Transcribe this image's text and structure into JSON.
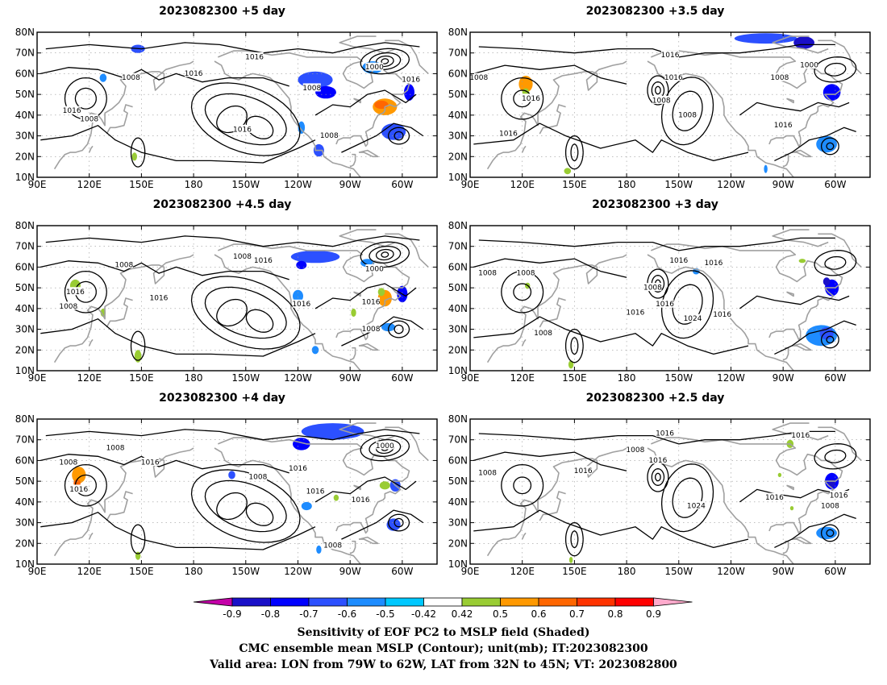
{
  "panels": [
    {
      "id": "p1",
      "title": "2023082300 +5 day",
      "contour_labels": [
        "1008",
        "1016",
        "1016",
        "1008",
        "1016",
        "1016",
        "1008",
        "1008",
        "1000",
        "1016"
      ],
      "shading": [
        {
          "lon": -70,
          "lat": 44,
          "rx": 7,
          "ry": 4,
          "v": 0.6
        },
        {
          "lon": -72,
          "lat": 45,
          "rx": 4,
          "ry": 2,
          "v": 0.7
        },
        {
          "lon": -65,
          "lat": 32,
          "rx": 7,
          "ry": 4,
          "v": -0.6
        },
        {
          "lon": -110,
          "lat": 57,
          "rx": 10,
          "ry": 4,
          "v": -0.6
        },
        {
          "lon": -104,
          "lat": 51,
          "rx": 6,
          "ry": 3,
          "v": -0.7
        },
        {
          "lon": -118,
          "lat": 34,
          "rx": 2,
          "ry": 3,
          "v": -0.5
        },
        {
          "lon": -108,
          "lat": 23,
          "rx": 3,
          "ry": 3,
          "v": -0.6
        },
        {
          "lon": -56,
          "lat": 51,
          "rx": 3,
          "ry": 4,
          "v": -0.7
        },
        {
          "lon": -77,
          "lat": 63,
          "rx": 6,
          "ry": 3,
          "v": -0.5
        },
        {
          "lon": 148,
          "lat": 72,
          "rx": 4,
          "ry": 2,
          "v": -0.6
        },
        {
          "lon": 146,
          "lat": 20,
          "rx": 1.5,
          "ry": 2,
          "v": 0.5
        },
        {
          "lon": 128,
          "lat": 58,
          "rx": 2,
          "ry": 2,
          "v": -0.5
        }
      ]
    },
    {
      "id": "p2",
      "title": "2023082300 +3.5 day",
      "contour_labels": [
        "1016",
        "1016",
        "1000",
        "1008",
        "1008",
        "1016",
        "1008",
        "1016",
        "1016",
        "1008"
      ],
      "shading": [
        {
          "lon": 122,
          "lat": 55,
          "rx": 4,
          "ry": 4,
          "v": 0.6
        },
        {
          "lon": 122,
          "lat": 51,
          "rx": 2,
          "ry": 2,
          "v": 0.5
        },
        {
          "lon": -62,
          "lat": 51,
          "rx": 5,
          "ry": 4,
          "v": -0.7
        },
        {
          "lon": -65,
          "lat": 26,
          "rx": 6,
          "ry": 4,
          "v": -0.5
        },
        {
          "lon": -100,
          "lat": 77,
          "rx": 18,
          "ry": 2.5,
          "v": -0.6
        },
        {
          "lon": -78,
          "lat": 75,
          "rx": 6,
          "ry": 3,
          "v": -0.8
        },
        {
          "lon": 146,
          "lat": 13,
          "rx": 2,
          "ry": 1.5,
          "v": 0.5
        },
        {
          "lon": -100,
          "lat": 14,
          "rx": 1,
          "ry": 2,
          "v": -0.5
        }
      ]
    },
    {
      "id": "p3",
      "title": "2023082300 +4.5 day",
      "contour_labels": [
        "1008",
        "1016",
        "1008",
        "1016",
        "1008",
        "1016",
        "1000",
        "1016",
        "1016",
        "1008"
      ],
      "shading": [
        {
          "lon": 112,
          "lat": 51,
          "rx": 3,
          "ry": 3,
          "v": 0.5
        },
        {
          "lon": 128,
          "lat": 38,
          "rx": 1.5,
          "ry": 2,
          "v": 0.5
        },
        {
          "lon": -70,
          "lat": 45,
          "rx": 4,
          "ry": 4,
          "v": 0.6
        },
        {
          "lon": -72,
          "lat": 48,
          "rx": 2,
          "ry": 2,
          "v": 0.5
        },
        {
          "lon": -60,
          "lat": 47,
          "rx": 3,
          "ry": 4,
          "v": -0.7
        },
        {
          "lon": -110,
          "lat": 65,
          "rx": 14,
          "ry": 3,
          "v": -0.6
        },
        {
          "lon": -118,
          "lat": 61,
          "rx": 3,
          "ry": 2,
          "v": -0.7
        },
        {
          "lon": -80,
          "lat": 62,
          "rx": 4,
          "ry": 2,
          "v": -0.5
        },
        {
          "lon": -68,
          "lat": 31,
          "rx": 4,
          "ry": 2,
          "v": -0.5
        },
        {
          "lon": -120,
          "lat": 46,
          "rx": 3,
          "ry": 3,
          "v": -0.5
        },
        {
          "lon": 148,
          "lat": 17,
          "rx": 2,
          "ry": 3,
          "v": 0.5
        },
        {
          "lon": -110,
          "lat": 20,
          "rx": 2,
          "ry": 2,
          "v": -0.5
        },
        {
          "lon": -88,
          "lat": 38,
          "rx": 1.5,
          "ry": 2,
          "v": 0.5
        }
      ]
    },
    {
      "id": "p4",
      "title": "2023082300 +3 day",
      "contour_labels": [
        "1008",
        "1016",
        "1016",
        "1008",
        "1016",
        "1008",
        "1016",
        "1016",
        "1024",
        "1008"
      ],
      "shading": [
        {
          "lon": -62,
          "lat": 50,
          "rx": 4,
          "ry": 4,
          "v": -0.7
        },
        {
          "lon": -65,
          "lat": 53,
          "rx": 2,
          "ry": 2,
          "v": -0.8
        },
        {
          "lon": -68,
          "lat": 27,
          "rx": 9,
          "ry": 5,
          "v": -0.5
        },
        {
          "lon": -65,
          "lat": 28,
          "rx": 4,
          "ry": 3,
          "v": -0.6
        },
        {
          "lon": -140,
          "lat": 58,
          "rx": 2,
          "ry": 1.5,
          "v": -0.5
        },
        {
          "lon": 123,
          "lat": 51,
          "rx": 1.5,
          "ry": 1.5,
          "v": 0.5
        },
        {
          "lon": -79,
          "lat": 63,
          "rx": 2,
          "ry": 1,
          "v": 0.5
        },
        {
          "lon": 148,
          "lat": 13,
          "rx": 1.5,
          "ry": 2,
          "v": 0.5
        }
      ]
    },
    {
      "id": "p5",
      "title": "2023082300 +4 day",
      "contour_labels": [
        "1008",
        "1016",
        "1008",
        "1016",
        "1016",
        "1000",
        "1016",
        "1016",
        "1008",
        "1008"
      ],
      "shading": [
        {
          "lon": 114,
          "lat": 53,
          "rx": 4,
          "ry": 4,
          "v": 0.6
        },
        {
          "lon": 113,
          "lat": 49,
          "rx": 2,
          "ry": 2,
          "v": 0.7
        },
        {
          "lon": -100,
          "lat": 74,
          "rx": 18,
          "ry": 4,
          "v": -0.6
        },
        {
          "lon": -118,
          "lat": 68,
          "rx": 5,
          "ry": 3,
          "v": -0.7
        },
        {
          "lon": -158,
          "lat": 53,
          "rx": 2,
          "ry": 2,
          "v": -0.6
        },
        {
          "lon": -70,
          "lat": 48,
          "rx": 3,
          "ry": 2,
          "v": 0.5
        },
        {
          "lon": -64,
          "lat": 48,
          "rx": 3,
          "ry": 3,
          "v": -0.6
        },
        {
          "lon": -65,
          "lat": 29,
          "rx": 4,
          "ry": 3,
          "v": -0.6
        },
        {
          "lon": -98,
          "lat": 42,
          "rx": 1.5,
          "ry": 1.5,
          "v": 0.5
        },
        {
          "lon": -115,
          "lat": 38,
          "rx": 3,
          "ry": 2,
          "v": -0.5
        },
        {
          "lon": -108,
          "lat": 17,
          "rx": 1.5,
          "ry": 2,
          "v": -0.5
        },
        {
          "lon": 148,
          "lat": 14,
          "rx": 1.5,
          "ry": 2,
          "v": 0.5
        }
      ]
    },
    {
      "id": "p6",
      "title": "2023082300 +2.5 day",
      "contour_labels": [
        "1008",
        "1016",
        "1016",
        "1008",
        "1016",
        "1016",
        "1024",
        "1008",
        "1016",
        "1016"
      ],
      "shading": [
        {
          "lon": -62,
          "lat": 50,
          "rx": 4,
          "ry": 4,
          "v": -0.7
        },
        {
          "lon": -62,
          "lat": 49,
          "rx": 2,
          "ry": 2,
          "v": -0.8
        },
        {
          "lon": -65,
          "lat": 25,
          "rx": 6,
          "ry": 3,
          "v": -0.5
        },
        {
          "lon": -86,
          "lat": 68,
          "rx": 2,
          "ry": 2,
          "v": 0.5
        },
        {
          "lon": -92,
          "lat": 53,
          "rx": 1,
          "ry": 1,
          "v": 0.5
        },
        {
          "lon": -85,
          "lat": 37,
          "rx": 1,
          "ry": 1,
          "v": 0.5
        },
        {
          "lon": 148,
          "lat": 12,
          "rx": 1,
          "ry": 1.5,
          "v": 0.5
        }
      ]
    }
  ],
  "axes": {
    "lon_ticks": [
      "90E",
      "120E",
      "150E",
      "180",
      "150W",
      "120W",
      "90W",
      "60W"
    ],
    "lat_ticks": [
      "10N",
      "20N",
      "30N",
      "40N",
      "50N",
      "60N",
      "70N",
      "80N"
    ]
  },
  "colorbar": {
    "levels": [
      "-0.9",
      "-0.8",
      "-0.7",
      "-0.6",
      "-0.5",
      "-0.42",
      "0.42",
      "0.5",
      "0.6",
      "0.7",
      "0.8",
      "0.9"
    ],
    "colors": [
      "#c400a8",
      "#1a10c8",
      "#0000ff",
      "#2c50ff",
      "#1e8cff",
      "#00c8ff",
      "#ffffff",
      "#99cc33",
      "#ff9900",
      "#ff6600",
      "#ff3300",
      "#ff0000",
      "#ffaacc"
    ]
  },
  "caption": {
    "line1": "Sensitivity of EOF PC2 to MSLP field (Shaded)",
    "line2": "CMC ensemble mean MSLP (Contour); unit(mb); IT:2023082300",
    "line3": "Valid area: LON from 79W to 62W, LAT from 32N to 45N; VT: 2023082800"
  }
}
